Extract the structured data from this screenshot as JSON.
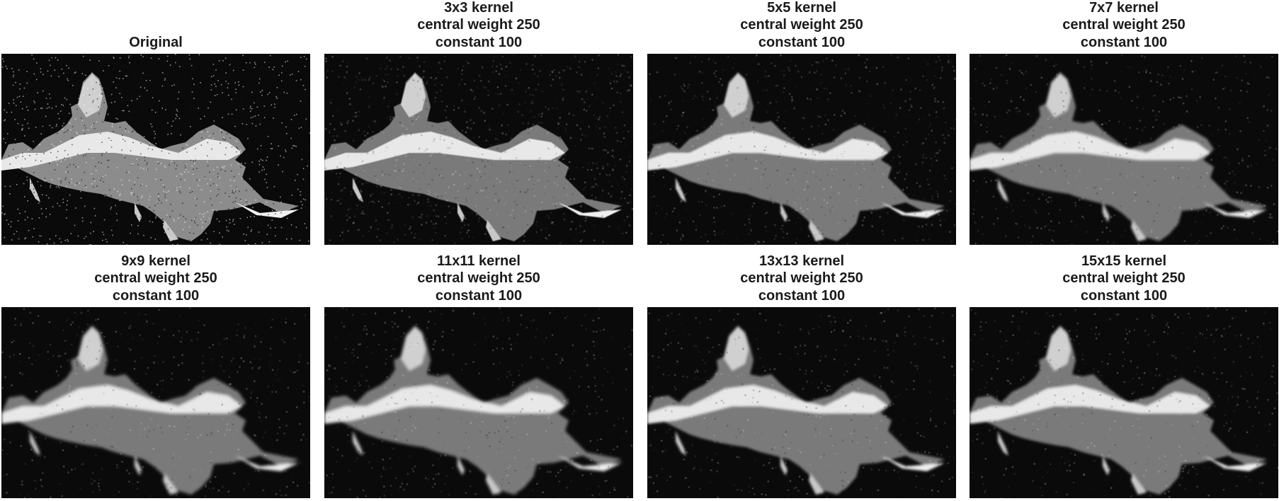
{
  "panels": [
    {
      "lines": [
        "Original"
      ],
      "noise": 1.0,
      "blur": 0
    },
    {
      "lines": [
        "3x3 kernel",
        "central weight 250",
        "constant 100"
      ],
      "noise": 0.7,
      "blur": 0.6
    },
    {
      "lines": [
        "5x5 kernel",
        "central weight 250",
        "constant 100"
      ],
      "noise": 0.5,
      "blur": 1.2
    },
    {
      "lines": [
        "7x7 kernel",
        "central weight 250",
        "constant 100"
      ],
      "noise": 0.4,
      "blur": 1.8
    },
    {
      "lines": [
        "9x9 kernel",
        "central weight 250",
        "constant 100"
      ],
      "noise": 0.35,
      "blur": 2.2
    },
    {
      "lines": [
        "11x11 kernel",
        "central weight 250",
        "constant 100"
      ],
      "noise": 0.35,
      "blur": 2.0
    },
    {
      "lines": [
        "13x13 kernel",
        "central weight 250",
        "constant 100"
      ],
      "noise": 0.35,
      "blur": 1.9
    },
    {
      "lines": [
        "15x15 kernel",
        "central weight 250",
        "constant 100"
      ],
      "noise": 0.35,
      "blur": 1.8
    }
  ]
}
